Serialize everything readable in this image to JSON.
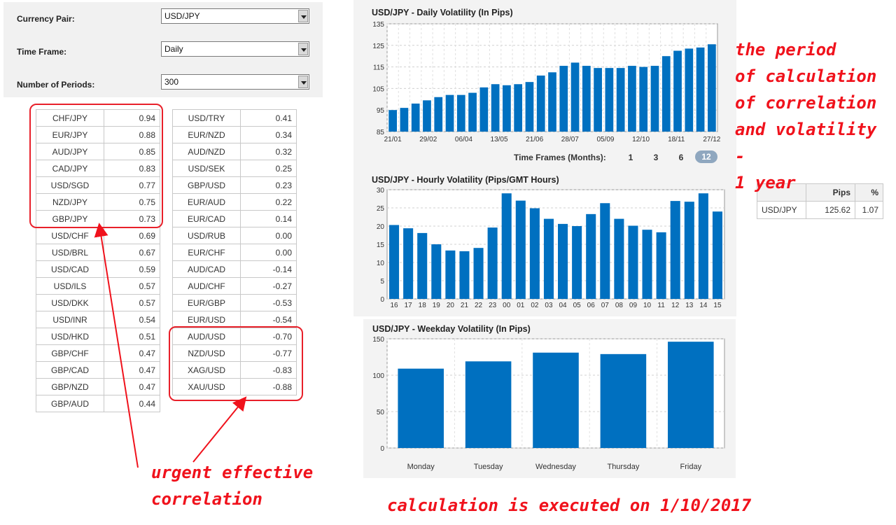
{
  "settings": {
    "currency_pair": {
      "label": "Currency Pair:",
      "value": "USD/JPY"
    },
    "time_frame": {
      "label": "Time Frame:",
      "value": "Daily"
    },
    "periods": {
      "label": "Number of Periods:",
      "value": "300"
    }
  },
  "correlation_left": [
    {
      "pair": "CHF/JPY",
      "value": "0.94"
    },
    {
      "pair": "EUR/JPY",
      "value": "0.88"
    },
    {
      "pair": "AUD/JPY",
      "value": "0.85"
    },
    {
      "pair": "CAD/JPY",
      "value": "0.83"
    },
    {
      "pair": "USD/SGD",
      "value": "0.77"
    },
    {
      "pair": "NZD/JPY",
      "value": "0.75"
    },
    {
      "pair": "GBP/JPY",
      "value": "0.73"
    },
    {
      "pair": "USD/CHF",
      "value": "0.69"
    },
    {
      "pair": "USD/BRL",
      "value": "0.67"
    },
    {
      "pair": "USD/CAD",
      "value": "0.59"
    },
    {
      "pair": "USD/ILS",
      "value": "0.57"
    },
    {
      "pair": "USD/DKK",
      "value": "0.57"
    },
    {
      "pair": "USD/INR",
      "value": "0.54"
    },
    {
      "pair": "USD/HKD",
      "value": "0.51"
    },
    {
      "pair": "GBP/CHF",
      "value": "0.47"
    },
    {
      "pair": "GBP/CAD",
      "value": "0.47"
    },
    {
      "pair": "GBP/NZD",
      "value": "0.47"
    },
    {
      "pair": "GBP/AUD",
      "value": "0.44"
    }
  ],
  "correlation_right": [
    {
      "pair": "USD/TRY",
      "value": "0.41"
    },
    {
      "pair": "EUR/NZD",
      "value": "0.34"
    },
    {
      "pair": "AUD/NZD",
      "value": "0.32"
    },
    {
      "pair": "USD/SEK",
      "value": "0.25"
    },
    {
      "pair": "GBP/USD",
      "value": "0.23"
    },
    {
      "pair": "EUR/AUD",
      "value": "0.22"
    },
    {
      "pair": "EUR/CAD",
      "value": "0.14"
    },
    {
      "pair": "USD/RUB",
      "value": "0.00"
    },
    {
      "pair": "EUR/CHF",
      "value": "0.00"
    },
    {
      "pair": "AUD/CAD",
      "value": "-0.14"
    },
    {
      "pair": "AUD/CHF",
      "value": "-0.27"
    },
    {
      "pair": "EUR/GBP",
      "value": "-0.53"
    },
    {
      "pair": "EUR/USD",
      "value": "-0.54"
    },
    {
      "pair": "AUD/USD",
      "value": "-0.70"
    },
    {
      "pair": "NZD/USD",
      "value": "-0.77"
    },
    {
      "pair": "XAG/USD",
      "value": "-0.83"
    },
    {
      "pair": "XAU/USD",
      "value": "-0.88"
    }
  ],
  "time_frames": {
    "label": "Time Frames (Months):",
    "options": [
      "1",
      "3",
      "6",
      "12"
    ],
    "active": "12"
  },
  "pips_table": {
    "headers": [
      "",
      "Pips",
      "%"
    ],
    "row": [
      "USD/JPY",
      "125.62",
      "1.07"
    ]
  },
  "annotations": {
    "period_lines": [
      "the period",
      "of calculation",
      "of correlation",
      "and volatility -",
      "1 year"
    ],
    "urgent_lines": [
      "urgent effective",
      "correlation"
    ],
    "calc": "calculation is executed on 1/10/2017"
  },
  "colors": {
    "bar": "#0070c0",
    "annotation": "#f0121c",
    "active_timeframe": "#8fa7bf"
  },
  "chart_data": [
    {
      "type": "bar",
      "title": "USD/JPY - Daily Volatility (In Pips)",
      "ylim": [
        85,
        135
      ],
      "yticks": [
        85,
        95,
        105,
        115,
        125,
        135
      ],
      "x_tick_labels": [
        "21/01",
        "29/02",
        "06/04",
        "13/05",
        "21/06",
        "28/07",
        "05/09",
        "12/10",
        "18/11",
        "27/12"
      ],
      "values": [
        95,
        96,
        98,
        99.5,
        101,
        102,
        102,
        103,
        105.5,
        107,
        106.5,
        107,
        108,
        111,
        112.5,
        115.5,
        117,
        115.5,
        114.5,
        114.5,
        114.5,
        115.5,
        115,
        115.5,
        120,
        122.5,
        123.5,
        124,
        125.5
      ],
      "grid": true
    },
    {
      "type": "bar",
      "title": "USD/JPY - Hourly Volatility (Pips/GMT Hours)",
      "ylim": [
        0,
        30
      ],
      "yticks": [
        0,
        5,
        10,
        15,
        20,
        25,
        30
      ],
      "categories": [
        "16",
        "17",
        "18",
        "19",
        "20",
        "21",
        "22",
        "23",
        "00",
        "01",
        "02",
        "03",
        "04",
        "05",
        "06",
        "07",
        "08",
        "09",
        "10",
        "11",
        "12",
        "13",
        "14",
        "15"
      ],
      "values": [
        20.3,
        19.4,
        18.1,
        15,
        13.3,
        13.1,
        14,
        19.6,
        29,
        27,
        24.9,
        22,
        20.6,
        20,
        23.3,
        26.3,
        22,
        20.1,
        19,
        18.3,
        26.9,
        26.7,
        29,
        24
      ],
      "grid": true
    },
    {
      "type": "bar",
      "title": "USD/JPY - Weekday Volatility (In Pips)",
      "ylim": [
        0,
        150
      ],
      "yticks": [
        0,
        50,
        100,
        150
      ],
      "categories": [
        "Monday",
        "Tuesday",
        "Wednesday",
        "Thursday",
        "Friday"
      ],
      "values": [
        109,
        119,
        131,
        129,
        146
      ],
      "grid": true
    }
  ]
}
